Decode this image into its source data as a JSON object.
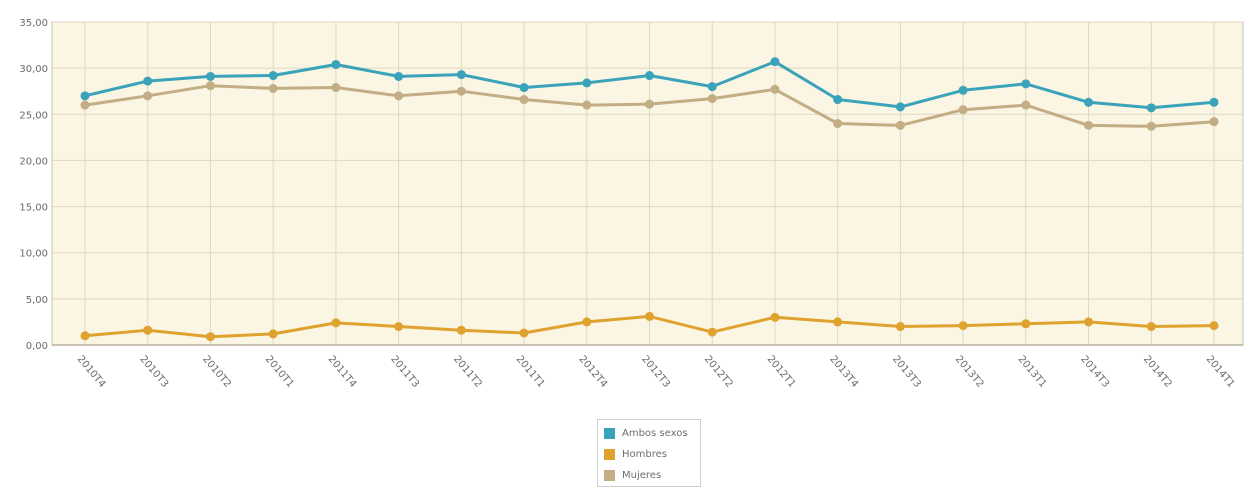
{
  "chart_data": {
    "type": "line",
    "categories": [
      "2010T4",
      "2010T3",
      "2010T2",
      "2010T1",
      "2011T4",
      "2011T3",
      "2011T2",
      "2011T1",
      "2012T4",
      "2012T3",
      "2012T2",
      "2012T1",
      "2013T4",
      "2013T3",
      "2013T2",
      "2013T1",
      "2014T3",
      "2014T2",
      "2014T1"
    ],
    "series": [
      {
        "name": "Ambos sexos",
        "color": "#3aa3b9",
        "values": [
          27.0,
          28.6,
          29.1,
          29.2,
          30.4,
          29.1,
          29.3,
          27.9,
          28.4,
          29.2,
          28.0,
          30.7,
          26.6,
          25.8,
          27.6,
          28.3,
          26.3,
          25.7,
          26.3
        ]
      },
      {
        "name": "Hombres",
        "color": "#e0a22e",
        "values": [
          1.0,
          1.6,
          0.9,
          1.2,
          2.4,
          2.0,
          1.6,
          1.3,
          2.5,
          3.1,
          1.4,
          3.0,
          2.5,
          2.0,
          2.1,
          2.3,
          2.5,
          2.0,
          2.1
        ]
      },
      {
        "name": "Mujeres",
        "color": "#c2ad85",
        "values": [
          26.0,
          27.0,
          28.1,
          27.8,
          27.9,
          27.0,
          27.5,
          26.6,
          26.0,
          26.1,
          26.7,
          27.7,
          24.0,
          23.8,
          25.5,
          26.0,
          23.8,
          23.7,
          24.2
        ]
      }
    ],
    "y_ticks": [
      "0,00",
      "5,00",
      "10,00",
      "15,00",
      "20,00",
      "25,00",
      "30,00",
      "35,00"
    ],
    "ylim": [
      0,
      35
    ],
    "grid": true,
    "legend_position": "bottom-center"
  },
  "legend": {
    "items": [
      {
        "label": "Ambos sexos",
        "color": "#3aa3b9"
      },
      {
        "label": "Hombres",
        "color": "#e0a22e"
      },
      {
        "label": "Mujeres",
        "color": "#c2ad85"
      }
    ]
  }
}
